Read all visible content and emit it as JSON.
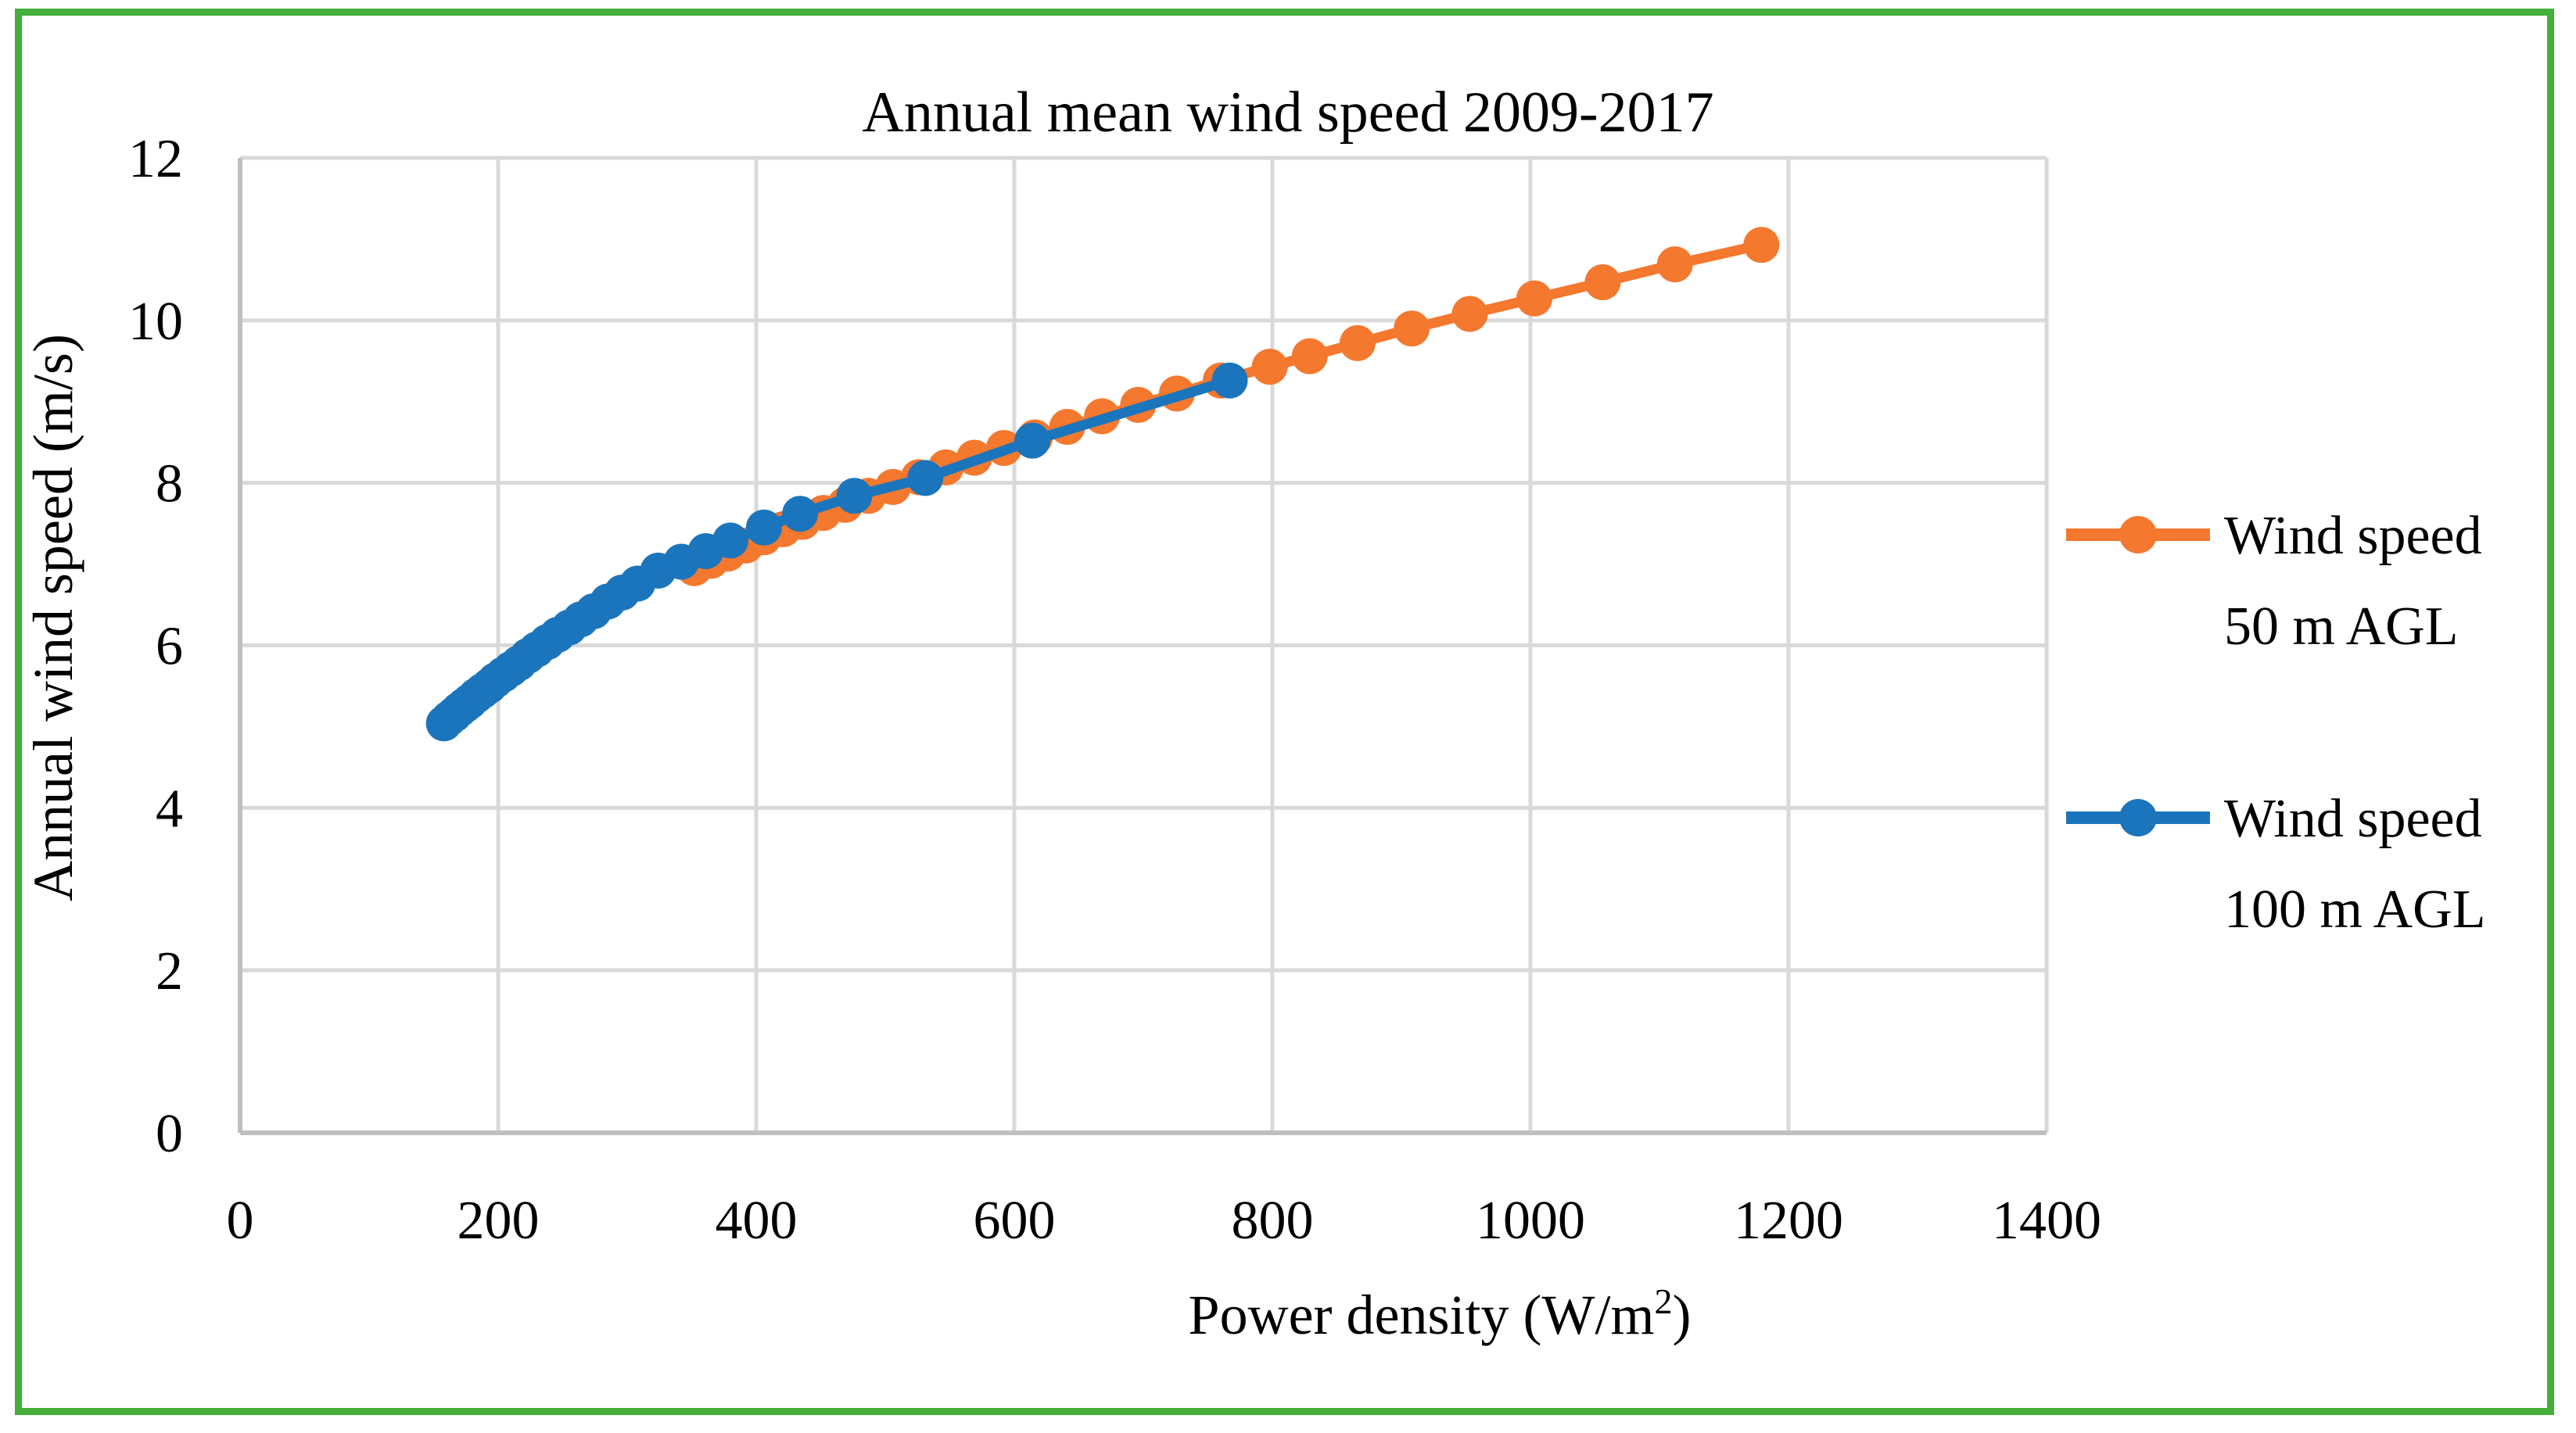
{
  "figure": {
    "border_color": "#44AF3B",
    "background_color": "#FFFFFF",
    "gridline_color": "#D9D9D9",
    "axis_line_color": "#BFBFBF",
    "text_color": "#000000"
  },
  "chart_data": {
    "type": "line",
    "title": "Annual mean wind speed 2009-2017",
    "xlabel": "Power density (W/m²)",
    "ylabel": "Annual wind speed (m/s)",
    "xlim": [
      0,
      1400
    ],
    "ylim": [
      0,
      12
    ],
    "xticks": [
      0,
      200,
      400,
      600,
      800,
      1000,
      1200,
      1400
    ],
    "yticks": [
      0,
      2,
      4,
      6,
      8,
      10,
      12
    ],
    "grid": true,
    "legend_position": "right",
    "series": [
      {
        "name": "Wind speed 50 m AGL",
        "legend_lines": [
          "Wind speed",
          "50 m AGL"
        ],
        "color": "#F4782E",
        "marker": "circle",
        "points": [
          [
            352,
            6.95
          ],
          [
            365,
            7.04
          ],
          [
            378,
            7.13
          ],
          [
            392,
            7.23
          ],
          [
            406,
            7.33
          ],
          [
            421,
            7.43
          ],
          [
            436,
            7.52
          ],
          [
            452,
            7.63
          ],
          [
            469,
            7.73
          ],
          [
            487,
            7.84
          ],
          [
            506,
            7.95
          ],
          [
            526,
            8.07
          ],
          [
            547,
            8.19
          ],
          [
            569,
            8.31
          ],
          [
            592,
            8.43
          ],
          [
            616,
            8.56
          ],
          [
            641,
            8.69
          ],
          [
            668,
            8.82
          ],
          [
            696,
            8.96
          ],
          [
            726,
            9.1
          ],
          [
            760,
            9.26
          ],
          [
            798,
            9.43
          ],
          [
            829,
            9.56
          ],
          [
            866,
            9.72
          ],
          [
            908,
            9.9
          ],
          [
            953,
            10.08
          ],
          [
            1003,
            10.27
          ],
          [
            1056,
            10.47
          ],
          [
            1112,
            10.69
          ],
          [
            1179,
            10.93
          ]
        ]
      },
      {
        "name": "Wind speed 100 m AGL",
        "legend_lines": [
          "Wind speed",
          "100 m AGL"
        ],
        "color": "#1B75BC",
        "marker": "circle",
        "points": [
          [
            158,
            5.04
          ],
          [
            162,
            5.1
          ],
          [
            166,
            5.15
          ],
          [
            170,
            5.21
          ],
          [
            174,
            5.26
          ],
          [
            178,
            5.31
          ],
          [
            183,
            5.38
          ],
          [
            188,
            5.44
          ],
          [
            193,
            5.5
          ],
          [
            198,
            5.57
          ],
          [
            204,
            5.64
          ],
          [
            210,
            5.71
          ],
          [
            216,
            5.78
          ],
          [
            223,
            5.87
          ],
          [
            230,
            5.95
          ],
          [
            238,
            6.04
          ],
          [
            246,
            6.13
          ],
          [
            255,
            6.22
          ],
          [
            264,
            6.32
          ],
          [
            274,
            6.42
          ],
          [
            285,
            6.54
          ],
          [
            296,
            6.65
          ],
          [
            308,
            6.76
          ],
          [
            324,
            6.92
          ],
          [
            342,
            7.03
          ],
          [
            361,
            7.16
          ],
          [
            380,
            7.29
          ],
          [
            406,
            7.45
          ],
          [
            434,
            7.62
          ],
          [
            476,
            7.84
          ],
          [
            531,
            8.06
          ],
          [
            614,
            8.52
          ],
          [
            767,
            9.26
          ]
        ]
      }
    ]
  }
}
